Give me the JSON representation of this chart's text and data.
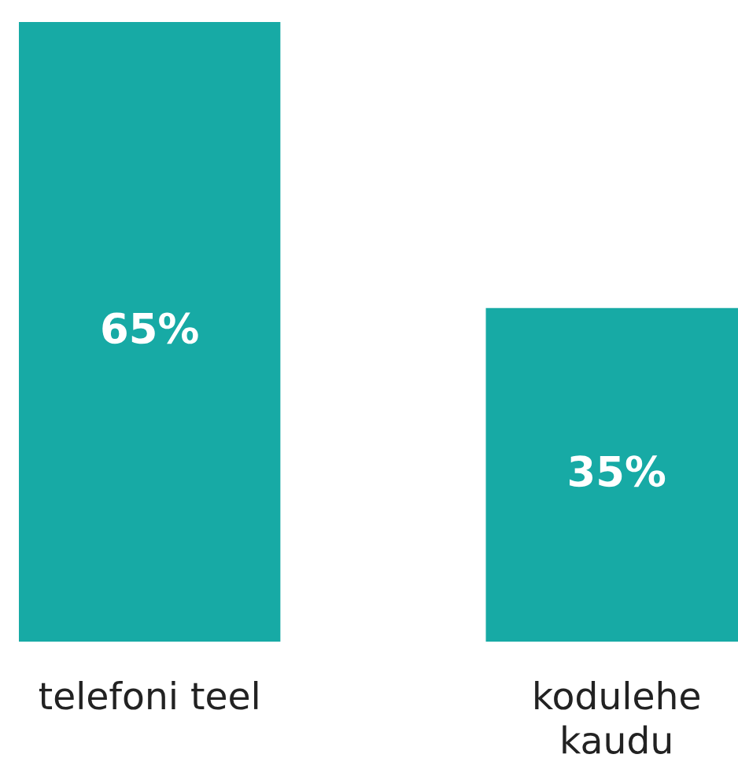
{
  "chart_data": {
    "type": "bar",
    "categories": [
      "telefoni teel",
      "kodulehe\nkaudu"
    ],
    "values": [
      65,
      35
    ],
    "value_labels": [
      "65%",
      "35%"
    ],
    "color": "#17aaa5",
    "grid": false,
    "legend": false
  }
}
